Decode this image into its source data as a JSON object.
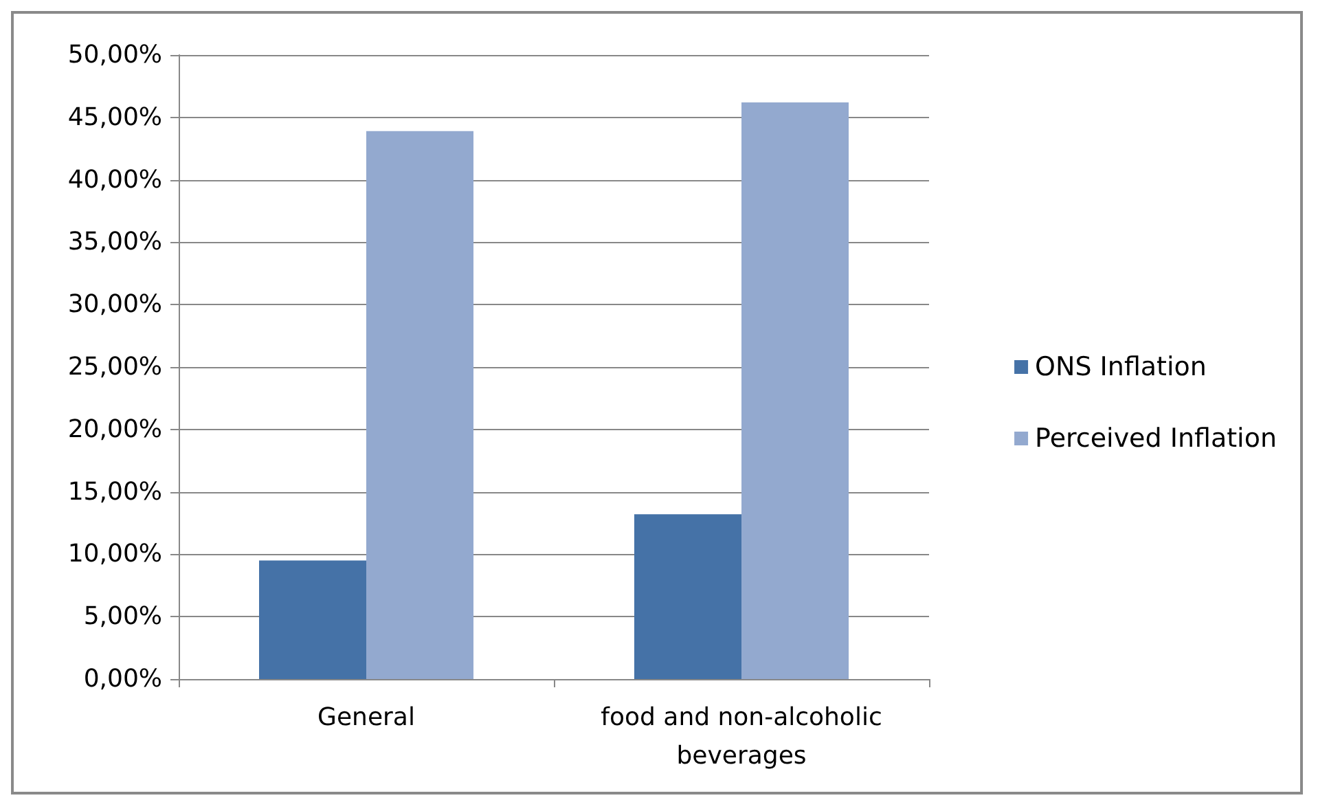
{
  "chart_data": {
    "type": "bar",
    "categories": [
      "General",
      "food and non-alcoholic\nbeverages"
    ],
    "series": [
      {
        "name": "ONS Inflation",
        "color": "#4572a7",
        "values": [
          9.5,
          13.2
        ]
      },
      {
        "name": "Perceived Inflation",
        "color": "#93a9cf",
        "values": [
          43.9,
          46.2
        ]
      }
    ],
    "ylim": [
      0,
      50
    ],
    "yticks": [
      {
        "value": 0,
        "label": "0,00%"
      },
      {
        "value": 5,
        "label": "5,00%"
      },
      {
        "value": 10,
        "label": "10,00%"
      },
      {
        "value": 15,
        "label": "15,00%"
      },
      {
        "value": 20,
        "label": "20,00%"
      },
      {
        "value": 25,
        "label": "25,00%"
      },
      {
        "value": 30,
        "label": "30,00%"
      },
      {
        "value": 35,
        "label": "35,00%"
      },
      {
        "value": 40,
        "label": "40,00%"
      },
      {
        "value": 45,
        "label": "45,00%"
      },
      {
        "value": 50,
        "label": "50,00%"
      }
    ],
    "grid": "y",
    "legend": "right"
  }
}
